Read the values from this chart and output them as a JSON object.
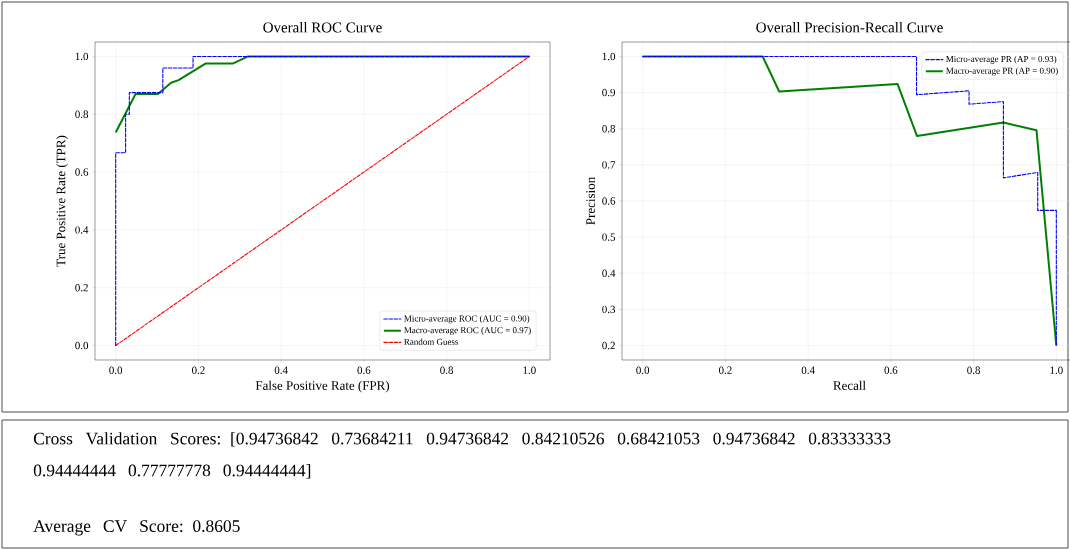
{
  "chart_data": [
    {
      "type": "line",
      "title": "Overall ROC Curve",
      "xlabel": "False Positive Rate (FPR)",
      "ylabel": "True Positive Rate (TPR)",
      "xlim": [
        -0.05,
        1.05
      ],
      "ylim": [
        -0.05,
        1.05
      ],
      "xticks": [
        {
          "value": 0,
          "label": "0.0"
        },
        {
          "value": 0.2,
          "label": "0.2"
        },
        {
          "value": 0.4,
          "label": "0.4"
        },
        {
          "value": 0.6,
          "label": "0.6"
        },
        {
          "value": 0.8,
          "label": "0.8"
        },
        {
          "value": 1,
          "label": "1.0"
        }
      ],
      "yticks": [
        {
          "value": 0,
          "label": "0.0"
        },
        {
          "value": 0.2,
          "label": "0.2"
        },
        {
          "value": 0.4,
          "label": "0.4"
        },
        {
          "value": 0.6,
          "label": "0.6"
        },
        {
          "value": 0.8,
          "label": "0.8"
        },
        {
          "value": 1,
          "label": "1.0"
        }
      ],
      "grid": true,
      "legend": "bottom right",
      "series": [
        {
          "name": "Micro-average ROC (AUC = 0.90)",
          "color": "#0000ff",
          "line_style": "dashed",
          "x": [
            0,
            0,
            0.024,
            0.024,
            0.033,
            0.033,
            0.114,
            0.114,
            0.187,
            0.187,
            1
          ],
          "values": [
            0,
            0.667,
            0.667,
            0.8,
            0.8,
            0.875,
            0.875,
            0.96,
            0.96,
            1,
            1
          ]
        },
        {
          "name": "Macro-average ROC (AUC = 0.97)",
          "color": "#008000",
          "line_style": "solid",
          "x": [
            0,
            0.048,
            0.102,
            0.134,
            0.152,
            0.218,
            0.284,
            0.32,
            1
          ],
          "values": [
            0.737,
            0.87,
            0.87,
            0.909,
            0.918,
            0.976,
            0.976,
            1,
            1
          ]
        },
        {
          "name": "Random Guess",
          "color": "#ff0000",
          "line_style": "dashed",
          "x": [
            0,
            1
          ],
          "values": [
            0,
            1
          ]
        }
      ]
    },
    {
      "type": "line",
      "title": "Overall Precision-Recall Curve",
      "xlabel": "Recall",
      "ylabel": "Precision",
      "xlim": [
        -0.05,
        1.05
      ],
      "ylim": [
        0.16,
        1.04
      ],
      "xticks": [
        {
          "value": 0,
          "label": "0.0"
        },
        {
          "value": 0.2,
          "label": "0.2"
        },
        {
          "value": 0.4,
          "label": "0.4"
        },
        {
          "value": 0.6,
          "label": "0.6"
        },
        {
          "value": 0.8,
          "label": "0.8"
        },
        {
          "value": 1,
          "label": "1.0"
        }
      ],
      "yticks": [
        0.2,
        0.3,
        0.4,
        0.5,
        0.6,
        0.7,
        0.8,
        0.9,
        {
          "value": 1,
          "label": "1.0"
        }
      ],
      "grid": true,
      "legend": "top right",
      "series": [
        {
          "name": "Micro-average PR (AP = 0.93)",
          "color": "#0000ff",
          "line_style": "dashed",
          "x": [
            0,
            0.662,
            0.662,
            0.789,
            0.789,
            0.872,
            0.872,
            0.955,
            0.955,
            1,
            1
          ],
          "values": [
            1,
            1,
            0.894,
            0.905,
            0.868,
            0.875,
            0.664,
            0.679,
            0.574,
            0.574,
            0.2
          ]
        },
        {
          "name": "Macro-average PR (AP = 0.90)",
          "color": "#008000",
          "line_style": "solid",
          "x": [
            0,
            0.29,
            0.33,
            0.616,
            0.663,
            0.872,
            0.952,
            1
          ],
          "values": [
            1,
            1,
            0.903,
            0.924,
            0.78,
            0.817,
            0.796,
            0.2
          ]
        }
      ]
    },
    {
      "type": "other",
      "annotations": [
        "Cross Validation Scores: [0.94736842 0.73684211 0.94736842 0.84210526 0.68421053 0.94736842 0.83333333 0.94444444 0.77777778 0.94444444]",
        "Average CV Score: 0.8605"
      ]
    }
  ]
}
